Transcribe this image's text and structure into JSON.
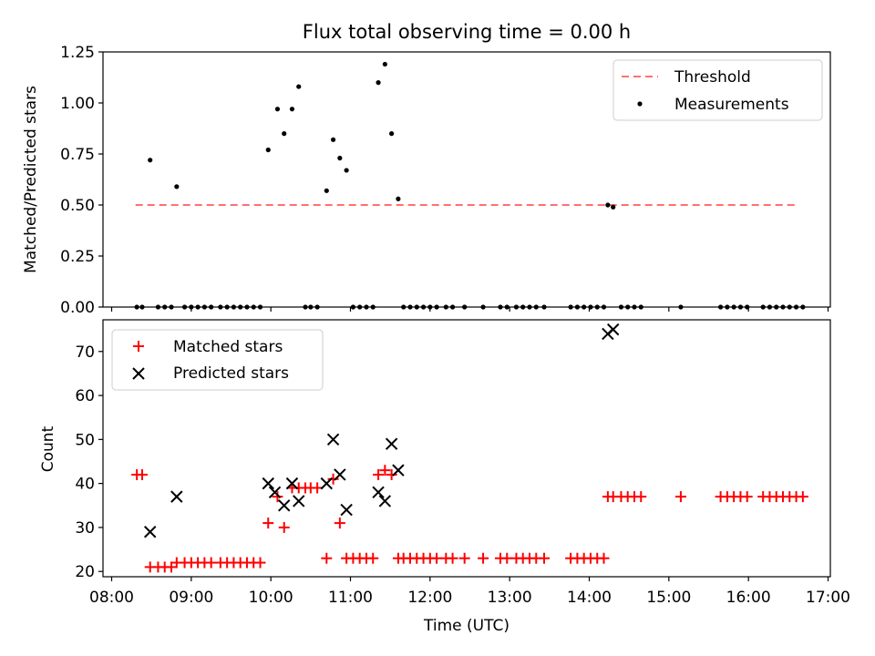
{
  "chart_data": [
    {
      "type": "scatter",
      "panel": "top",
      "title": "Flux total observing time = 0.00 h",
      "ylabel": "Matched/Predicted stars",
      "xlabel": "",
      "ylim": [
        0,
        1.25
      ],
      "yticks": [
        0.0,
        0.25,
        0.5,
        0.75,
        1.0,
        1.25
      ],
      "ytick_labels": [
        "0.00",
        "0.25",
        "0.50",
        "0.75",
        "1.00",
        "1.25"
      ],
      "legend_position": "upper right",
      "legend": [
        "Threshold",
        "Measurements"
      ],
      "threshold": {
        "name": "Threshold",
        "value": 0.5,
        "x_start": "08:18",
        "x_end": "16:36",
        "color": "#ff7070",
        "style": "dashed"
      },
      "series": [
        {
          "name": "Measurements",
          "marker": "dot",
          "color": "#000000",
          "points": [
            [
              "08:29",
              0.72
            ],
            [
              "08:49",
              0.59
            ],
            [
              "09:58",
              0.77
            ],
            [
              "10:05",
              0.97
            ],
            [
              "10:10",
              0.85
            ],
            [
              "10:16",
              0.97
            ],
            [
              "10:21",
              1.08
            ],
            [
              "10:42",
              0.57
            ],
            [
              "10:47",
              0.82
            ],
            [
              "10:52",
              0.73
            ],
            [
              "10:57",
              0.67
            ],
            [
              "11:21",
              1.1
            ],
            [
              "11:26",
              1.19
            ],
            [
              "11:31",
              0.85
            ],
            [
              "11:36",
              0.53
            ],
            [
              "14:14",
              0.5
            ],
            [
              "14:18",
              0.49
            ],
            [
              "08:19",
              0
            ],
            [
              "08:23",
              0
            ],
            [
              "08:35",
              0
            ],
            [
              "08:40",
              0
            ],
            [
              "08:45",
              0
            ],
            [
              "08:55",
              0
            ],
            [
              "09:00",
              0
            ],
            [
              "09:05",
              0
            ],
            [
              "09:10",
              0
            ],
            [
              "09:15",
              0
            ],
            [
              "09:22",
              0
            ],
            [
              "09:27",
              0
            ],
            [
              "09:32",
              0
            ],
            [
              "09:37",
              0
            ],
            [
              "09:42",
              0
            ],
            [
              "09:47",
              0
            ],
            [
              "09:52",
              0
            ],
            [
              "10:26",
              0
            ],
            [
              "10:30",
              0
            ],
            [
              "10:35",
              0
            ],
            [
              "11:02",
              0
            ],
            [
              "11:07",
              0
            ],
            [
              "11:12",
              0
            ],
            [
              "11:17",
              0
            ],
            [
              "11:40",
              0
            ],
            [
              "11:45",
              0
            ],
            [
              "11:50",
              0
            ],
            [
              "11:55",
              0
            ],
            [
              "12:00",
              0
            ],
            [
              "12:05",
              0
            ],
            [
              "12:12",
              0
            ],
            [
              "12:17",
              0
            ],
            [
              "12:26",
              0
            ],
            [
              "12:40",
              0
            ],
            [
              "12:53",
              0
            ],
            [
              "12:58",
              0
            ],
            [
              "13:05",
              0
            ],
            [
              "13:10",
              0
            ],
            [
              "13:15",
              0
            ],
            [
              "13:20",
              0
            ],
            [
              "13:26",
              0
            ],
            [
              "13:46",
              0
            ],
            [
              "13:51",
              0
            ],
            [
              "13:56",
              0
            ],
            [
              "14:01",
              0
            ],
            [
              "14:06",
              0
            ],
            [
              "14:11",
              0
            ],
            [
              "14:24",
              0
            ],
            [
              "14:29",
              0
            ],
            [
              "14:34",
              0
            ],
            [
              "14:39",
              0
            ],
            [
              "15:09",
              0
            ],
            [
              "15:39",
              0
            ],
            [
              "15:44",
              0
            ],
            [
              "15:49",
              0
            ],
            [
              "15:54",
              0
            ],
            [
              "15:59",
              0
            ],
            [
              "16:11",
              0
            ],
            [
              "16:16",
              0
            ],
            [
              "16:21",
              0
            ],
            [
              "16:26",
              0
            ],
            [
              "16:31",
              0
            ],
            [
              "16:36",
              0
            ],
            [
              "16:41",
              0
            ]
          ]
        }
      ]
    },
    {
      "type": "scatter",
      "panel": "bottom",
      "title": "",
      "xlabel": "Time (UTC)",
      "ylabel": "Count",
      "xlim": [
        "08:00",
        "17:00"
      ],
      "ylim": [
        18.8,
        77.2
      ],
      "yticks": [
        20,
        30,
        40,
        50,
        60,
        70
      ],
      "ytick_labels": [
        "20",
        "30",
        "40",
        "50",
        "60",
        "70"
      ],
      "xticks": [
        "08:00",
        "09:00",
        "10:00",
        "11:00",
        "12:00",
        "13:00",
        "14:00",
        "15:00",
        "16:00",
        "17:00"
      ],
      "legend_position": "upper left",
      "legend": [
        "Matched stars",
        "Predicted stars"
      ],
      "series": [
        {
          "name": "Matched stars",
          "marker": "plus",
          "color": "#ff0000",
          "points": [
            [
              "08:19",
              42
            ],
            [
              "08:23",
              42
            ],
            [
              "08:29",
              21
            ],
            [
              "08:35",
              21
            ],
            [
              "08:40",
              21
            ],
            [
              "08:45",
              21
            ],
            [
              "08:49",
              22
            ],
            [
              "08:55",
              22
            ],
            [
              "09:00",
              22
            ],
            [
              "09:05",
              22
            ],
            [
              "09:10",
              22
            ],
            [
              "09:15",
              22
            ],
            [
              "09:22",
              22
            ],
            [
              "09:27",
              22
            ],
            [
              "09:32",
              22
            ],
            [
              "09:37",
              22
            ],
            [
              "09:42",
              22
            ],
            [
              "09:47",
              22
            ],
            [
              "09:52",
              22
            ],
            [
              "09:58",
              31
            ],
            [
              "10:05",
              37
            ],
            [
              "10:10",
              30
            ],
            [
              "10:16",
              39
            ],
            [
              "10:21",
              39
            ],
            [
              "10:26",
              39
            ],
            [
              "10:30",
              39
            ],
            [
              "10:35",
              39
            ],
            [
              "10:42",
              23
            ],
            [
              "10:47",
              41
            ],
            [
              "10:52",
              31
            ],
            [
              "10:57",
              23
            ],
            [
              "11:02",
              23
            ],
            [
              "11:07",
              23
            ],
            [
              "11:12",
              23
            ],
            [
              "11:17",
              23
            ],
            [
              "11:21",
              42
            ],
            [
              "11:26",
              43
            ],
            [
              "11:31",
              42
            ],
            [
              "11:36",
              23
            ],
            [
              "11:40",
              23
            ],
            [
              "11:45",
              23
            ],
            [
              "11:50",
              23
            ],
            [
              "11:55",
              23
            ],
            [
              "12:00",
              23
            ],
            [
              "12:05",
              23
            ],
            [
              "12:12",
              23
            ],
            [
              "12:17",
              23
            ],
            [
              "12:26",
              23
            ],
            [
              "12:40",
              23
            ],
            [
              "12:53",
              23
            ],
            [
              "12:58",
              23
            ],
            [
              "13:05",
              23
            ],
            [
              "13:10",
              23
            ],
            [
              "13:15",
              23
            ],
            [
              "13:20",
              23
            ],
            [
              "13:26",
              23
            ],
            [
              "13:46",
              23
            ],
            [
              "13:51",
              23
            ],
            [
              "13:56",
              23
            ],
            [
              "14:01",
              23
            ],
            [
              "14:06",
              23
            ],
            [
              "14:11",
              23
            ],
            [
              "14:14",
              37
            ],
            [
              "14:18",
              37
            ],
            [
              "14:24",
              37
            ],
            [
              "14:29",
              37
            ],
            [
              "14:34",
              37
            ],
            [
              "14:39",
              37
            ],
            [
              "15:09",
              37
            ],
            [
              "15:39",
              37
            ],
            [
              "15:44",
              37
            ],
            [
              "15:49",
              37
            ],
            [
              "15:54",
              37
            ],
            [
              "15:59",
              37
            ],
            [
              "16:11",
              37
            ],
            [
              "16:16",
              37
            ],
            [
              "16:21",
              37
            ],
            [
              "16:26",
              37
            ],
            [
              "16:31",
              37
            ],
            [
              "16:36",
              37
            ],
            [
              "16:41",
              37
            ]
          ]
        },
        {
          "name": "Predicted stars",
          "marker": "x",
          "color": "#000000",
          "points": [
            [
              "08:29",
              29
            ],
            [
              "08:49",
              37
            ],
            [
              "09:58",
              40
            ],
            [
              "10:03",
              38
            ],
            [
              "10:10",
              35
            ],
            [
              "10:16",
              40
            ],
            [
              "10:21",
              36
            ],
            [
              "10:42",
              40
            ],
            [
              "10:47",
              50
            ],
            [
              "10:52",
              42
            ],
            [
              "10:57",
              34
            ],
            [
              "11:21",
              38
            ],
            [
              "11:26",
              36
            ],
            [
              "11:31",
              49
            ],
            [
              "11:36",
              43
            ],
            [
              "14:14",
              74
            ],
            [
              "14:18",
              75
            ]
          ]
        }
      ]
    }
  ]
}
